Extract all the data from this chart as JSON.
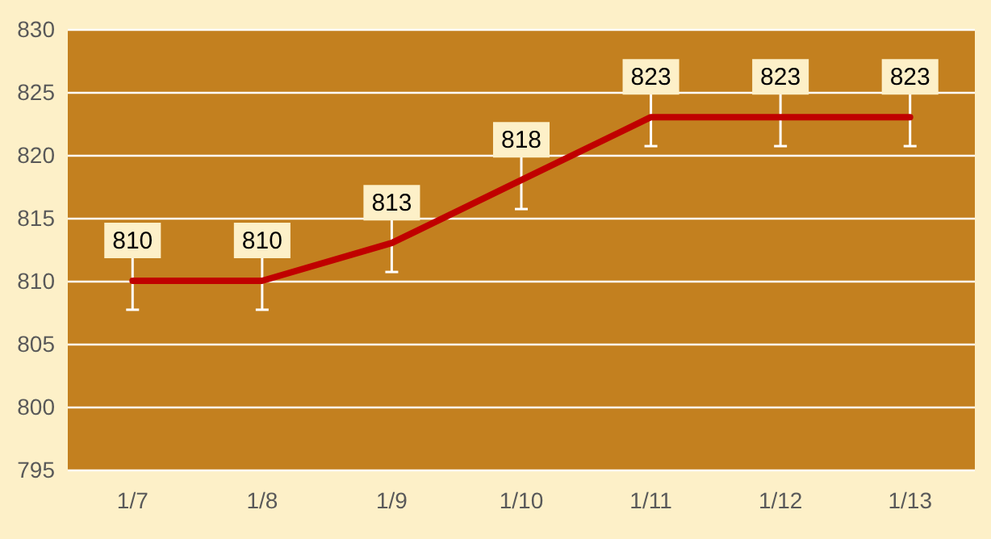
{
  "chart_data": {
    "type": "line",
    "categories": [
      "1/7",
      "1/8",
      "1/9",
      "1/10",
      "1/11",
      "1/12",
      "1/13"
    ],
    "series": [
      {
        "color": "#c00000",
        "values": [
          810,
          810,
          813,
          818,
          823,
          823,
          823
        ],
        "errors": [
          2.3,
          2.3,
          2.3,
          2.3,
          2.3,
          2.3,
          2.3
        ]
      }
    ],
    "ylim": [
      795,
      830
    ],
    "yticks": [
      795,
      800,
      805,
      810,
      815,
      820,
      825,
      830
    ],
    "grid": "y",
    "data_labels": true,
    "marker": "none",
    "line_style": "solid"
  }
}
